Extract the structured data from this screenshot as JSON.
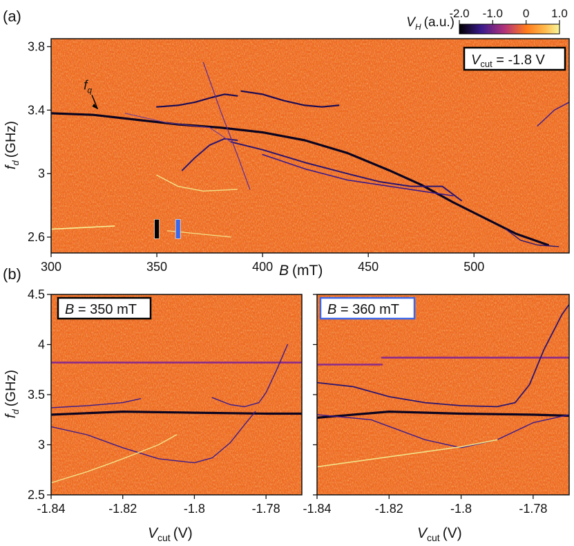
{
  "colors": {
    "map_low": "#000000",
    "map_mid_low": "#3a1a8c",
    "map_mid": "#b0327a",
    "map_zero": "#ff7a1c",
    "map_high": "#f7f59a",
    "background_noise": "#ee6a1f",
    "box_black": "#000000",
    "box_blue": "#3c68e8"
  },
  "chart_data": [
    {
      "id": "a",
      "type": "heatmap",
      "panel_label": "(a)",
      "xlabel_var": "B",
      "xlabel_unit": "(mT)",
      "ylabel_var": "f",
      "ylabel_sub": "d",
      "ylabel_unit": "(GHz)",
      "xlim": [
        300,
        545
      ],
      "ylim": [
        2.5,
        3.85
      ],
      "x_ticks": [
        300,
        350,
        400,
        450,
        500
      ],
      "x_tick_labels": [
        "300",
        "350",
        "400",
        "450",
        "500"
      ],
      "y_ticks": [
        2.6,
        3.0,
        3.4,
        3.8
      ],
      "y_tick_labels": [
        "2.6",
        "3",
        "3.4",
        "3.8"
      ],
      "annotation_box": {
        "var": "V",
        "sub": "cut",
        "text": " = -1.8 V"
      },
      "arrow_label": {
        "var": "f",
        "sub": "q",
        "x": 318,
        "y": 3.53,
        "target_x": 322,
        "target_y": 3.38
      },
      "markers": [
        {
          "name": "black",
          "x": 350,
          "color": "#000000"
        },
        {
          "name": "blue",
          "x": 360,
          "color": "#3c68e8"
        }
      ],
      "colorbar": {
        "label_var": "V",
        "label_sub": "H",
        "label_unit": "(a.u.)",
        "range": [
          -2.0,
          1.0
        ],
        "ticks": [
          -2.0,
          -1.0,
          0,
          1.0
        ],
        "tick_labels": [
          "-2.0",
          "-1.0",
          "0",
          "1.0"
        ]
      },
      "series": [
        {
          "name": "fq-main",
          "width": 3.2,
          "color": "#0a0420",
          "points": [
            [
              300,
              3.38
            ],
            [
              320,
              3.37
            ],
            [
              340,
              3.34
            ],
            [
              360,
              3.31
            ],
            [
              380,
              3.29
            ],
            [
              400,
              3.26
            ],
            [
              420,
              3.21
            ],
            [
              440,
              3.13
            ],
            [
              460,
              3.02
            ],
            [
              475,
              2.93
            ],
            [
              490,
              2.82
            ],
            [
              505,
              2.72
            ],
            [
              520,
              2.62
            ],
            [
              535,
              2.55
            ]
          ]
        },
        {
          "name": "upper-arc-left",
          "width": 2.2,
          "color": "#1a0a55",
          "points": [
            [
              350,
              3.42
            ],
            [
              360,
              3.43
            ],
            [
              368,
              3.45
            ],
            [
              376,
              3.48
            ],
            [
              382,
              3.5
            ],
            [
              388,
              3.49
            ]
          ]
        },
        {
          "name": "upper-arc-right",
          "width": 2.2,
          "color": "#1a0a55",
          "points": [
            [
              390,
              3.52
            ],
            [
              400,
              3.5
            ],
            [
              410,
              3.46
            ],
            [
              420,
              3.43
            ],
            [
              428,
              3.42
            ],
            [
              436,
              3.43
            ]
          ]
        },
        {
          "name": "lower-arc",
          "width": 2.0,
          "color": "#2a1470",
          "points": [
            [
              362,
              3.02
            ],
            [
              368,
              3.1
            ],
            [
              375,
              3.18
            ],
            [
              382,
              3.22
            ],
            [
              388,
              3.21
            ]
          ]
        },
        {
          "name": "lower-branch",
          "width": 2.0,
          "color": "#2a1470",
          "points": [
            [
              385,
              3.2
            ],
            [
              400,
              3.15
            ],
            [
              420,
              3.07
            ],
            [
              440,
              3.0
            ],
            [
              455,
              2.95
            ],
            [
              470,
              2.92
            ],
            [
              485,
              2.92
            ],
            [
              494,
              2.83
            ]
          ]
        },
        {
          "name": "lower-loop",
          "width": 1.6,
          "color": "#3a1a8c",
          "points": [
            [
              400,
              3.12
            ],
            [
              420,
              3.03
            ],
            [
              440,
              2.96
            ],
            [
              460,
              2.92
            ],
            [
              475,
              2.89
            ],
            [
              490,
              2.86
            ]
          ]
        },
        {
          "name": "diag-1",
          "width": 1.2,
          "color": "#5a2a9a",
          "points": [
            [
              372,
              3.7
            ],
            [
              380,
              3.4
            ],
            [
              388,
              3.12
            ],
            [
              394,
              2.9
            ]
          ]
        },
        {
          "name": "diag-2",
          "width": 1.0,
          "color": "#6a3aa0",
          "points": [
            [
              335,
              3.38
            ],
            [
              355,
              3.32
            ],
            [
              375,
              3.29
            ],
            [
              385,
              3.2
            ]
          ]
        },
        {
          "name": "bright-1",
          "width": 1.6,
          "color": "#f7f59a",
          "points": [
            [
              300,
              2.65
            ],
            [
              315,
              2.66
            ],
            [
              330,
              2.67
            ]
          ]
        },
        {
          "name": "bright-2",
          "width": 1.4,
          "color": "#f2e48a",
          "points": [
            [
              350,
              2.99
            ],
            [
              360,
              2.92
            ],
            [
              372,
              2.89
            ],
            [
              388,
              2.9
            ]
          ]
        },
        {
          "name": "bright-3",
          "width": 1.2,
          "color": "#f2e48a",
          "points": [
            [
              355,
              2.64
            ],
            [
              370,
              2.62
            ],
            [
              385,
              2.6
            ]
          ]
        },
        {
          "name": "right-edge",
          "width": 1.4,
          "color": "#3a1a8c",
          "points": [
            [
              530,
              3.3
            ],
            [
              538,
              3.4
            ],
            [
              545,
              3.45
            ]
          ]
        },
        {
          "name": "tail-2",
          "width": 1.4,
          "color": "#2a1470",
          "points": [
            [
              515,
              2.65
            ],
            [
              522,
              2.58
            ],
            [
              530,
              2.55
            ],
            [
              540,
              2.54
            ]
          ]
        }
      ]
    },
    {
      "id": "b-left",
      "type": "heatmap",
      "panel_label": "(b)",
      "xlabel_var": "V",
      "xlabel_sub": "cut",
      "xlabel_unit": "(V)",
      "ylabel_var": "f",
      "ylabel_sub": "d",
      "ylabel_unit": "(GHz)",
      "xlim": [
        -1.84,
        -1.77
      ],
      "ylim": [
        2.5,
        4.5
      ],
      "x_ticks": [
        -1.84,
        -1.82,
        -1.8,
        -1.78
      ],
      "x_tick_labels": [
        "-1.84",
        "-1.82",
        "-1.8",
        "-1.78"
      ],
      "y_ticks": [
        2.5,
        3.0,
        3.5,
        4.0,
        4.5
      ],
      "y_tick_labels": [
        "2.5",
        "3",
        "3.5",
        "4",
        "4.5"
      ],
      "annotation_box": {
        "var": "B",
        "text": " = 350 mT",
        "border": "#000000"
      },
      "series": [
        {
          "name": "fq-flat",
          "width": 3.2,
          "color": "#0a0420",
          "points": [
            [
              -1.84,
              3.3
            ],
            [
              -1.82,
              3.33
            ],
            [
              -1.8,
              3.32
            ],
            [
              -1.78,
              3.31
            ],
            [
              -1.77,
              3.31
            ]
          ]
        },
        {
          "name": "hline-3.82",
          "width": 2.6,
          "color": "#8a2a8a",
          "points": [
            [
              -1.84,
              3.82
            ],
            [
              -1.77,
              3.82
            ]
          ]
        },
        {
          "name": "upper-short",
          "width": 1.4,
          "color": "#3a1a8c",
          "points": [
            [
              -1.84,
              3.37
            ],
            [
              -1.83,
              3.39
            ],
            [
              -1.82,
              3.42
            ],
            [
              -1.815,
              3.46
            ]
          ]
        },
        {
          "name": "upper-curve",
          "width": 1.4,
          "color": "#3a1a8c",
          "points": [
            [
              -1.795,
              3.47
            ],
            [
              -1.79,
              3.4
            ],
            [
              -1.786,
              3.38
            ],
            [
              -1.782,
              3.42
            ],
            [
              -1.78,
              3.52
            ],
            [
              -1.777,
              3.75
            ],
            [
              -1.774,
              4.0
            ]
          ]
        },
        {
          "name": "lower-dip",
          "width": 1.4,
          "color": "#3a1a8c",
          "points": [
            [
              -1.84,
              3.18
            ],
            [
              -1.83,
              3.1
            ],
            [
              -1.82,
              2.97
            ],
            [
              -1.81,
              2.86
            ],
            [
              -1.8,
              2.82
            ],
            [
              -1.795,
              2.87
            ],
            [
              -1.79,
              3.02
            ],
            [
              -1.786,
              3.2
            ],
            [
              -1.783,
              3.33
            ]
          ]
        },
        {
          "name": "bright-low",
          "width": 1.4,
          "color": "#f2e48a",
          "points": [
            [
              -1.84,
              2.62
            ],
            [
              -1.83,
              2.73
            ],
            [
              -1.82,
              2.86
            ],
            [
              -1.81,
              3.0
            ],
            [
              -1.805,
              3.1
            ]
          ]
        }
      ]
    },
    {
      "id": "b-right",
      "type": "heatmap",
      "xlabel_var": "V",
      "xlabel_sub": "cut",
      "xlabel_unit": "(V)",
      "xlim": [
        -1.84,
        -1.77
      ],
      "ylim": [
        2.5,
        4.5
      ],
      "x_ticks": [
        -1.84,
        -1.82,
        -1.8,
        -1.78
      ],
      "x_tick_labels": [
        "-1.84",
        "-1.82",
        "-1.8",
        "-1.78"
      ],
      "y_ticks": [
        2.5,
        3.0,
        3.5,
        4.0,
        4.5
      ],
      "annotation_box": {
        "var": "B",
        "text": " = 360 mT",
        "border": "#3c68e8"
      },
      "series": [
        {
          "name": "fq-flat",
          "width": 3.2,
          "color": "#0a0420",
          "points": [
            [
              -1.84,
              3.27
            ],
            [
              -1.82,
              3.33
            ],
            [
              -1.8,
              3.31
            ],
            [
              -1.78,
              3.3
            ],
            [
              -1.77,
              3.29
            ]
          ]
        },
        {
          "name": "hline-left",
          "width": 2.6,
          "color": "#8a2a8a",
          "points": [
            [
              -1.84,
              3.8
            ],
            [
              -1.822,
              3.8
            ]
          ]
        },
        {
          "name": "hline-right",
          "width": 2.6,
          "color": "#8a2a8a",
          "points": [
            [
              -1.822,
              3.87
            ],
            [
              -1.77,
              3.87
            ]
          ]
        },
        {
          "name": "upper-curve",
          "width": 1.8,
          "color": "#2a1470",
          "points": [
            [
              -1.84,
              3.62
            ],
            [
              -1.83,
              3.58
            ],
            [
              -1.82,
              3.48
            ],
            [
              -1.81,
              3.42
            ],
            [
              -1.8,
              3.39
            ],
            [
              -1.79,
              3.38
            ],
            [
              -1.785,
              3.42
            ],
            [
              -1.781,
              3.6
            ],
            [
              -1.777,
              3.95
            ],
            [
              -1.772,
              4.3
            ],
            [
              -1.77,
              4.4
            ]
          ]
        },
        {
          "name": "lower-dip",
          "width": 1.4,
          "color": "#3a1a8c",
          "points": [
            [
              -1.84,
              3.3
            ],
            [
              -1.825,
              3.25
            ],
            [
              -1.81,
              3.05
            ],
            [
              -1.8,
              2.97
            ],
            [
              -1.79,
              3.05
            ],
            [
              -1.78,
              3.22
            ],
            [
              -1.77,
              3.3
            ]
          ]
        },
        {
          "name": "bright-low",
          "width": 1.6,
          "color": "#f2e48a",
          "points": [
            [
              -1.84,
              2.78
            ],
            [
              -1.82,
              2.88
            ],
            [
              -1.8,
              2.98
            ],
            [
              -1.79,
              3.05
            ]
          ]
        }
      ]
    }
  ]
}
